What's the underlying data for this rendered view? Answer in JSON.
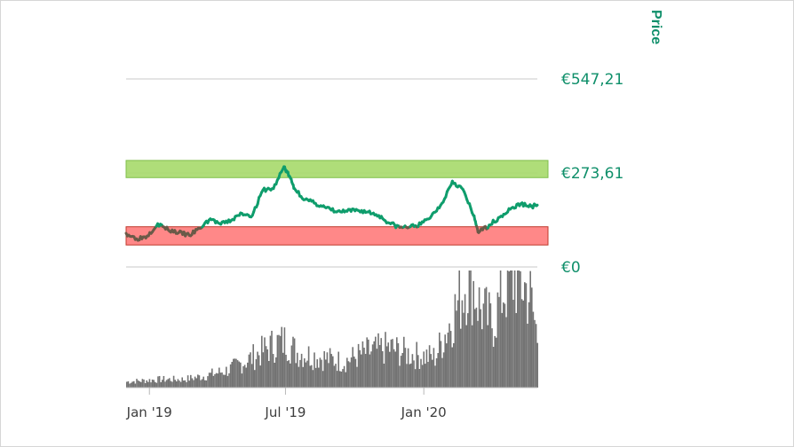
{
  "chart_data": {
    "type": "line",
    "title": "",
    "y_axis_title": "Price",
    "y_tick_labels": [
      "€547,21",
      "€273,61",
      "€0"
    ],
    "y_ticks": [
      547.21,
      273.61,
      0
    ],
    "ylim": [
      0,
      547.21
    ],
    "x_tick_labels": [
      "Jan '19",
      "Jul '19",
      "Jan '20"
    ],
    "x_ticks": [
      "2019-01-01",
      "2019-07-01",
      "2020-01-01"
    ],
    "x_range": [
      "2018-12-01",
      "2020-05-31"
    ],
    "grid": true,
    "zones": [
      {
        "name": "upper-band",
        "color": "#a6d96a",
        "y_from": 260,
        "y_to": 310
      },
      {
        "name": "lower-band",
        "color": "#ff7b7b",
        "y_from": 64,
        "y_to": 117
      }
    ],
    "colors": {
      "line": "#0f9d6c",
      "line_in_band": "#6b5a48",
      "volume": "#737373",
      "accent": "#0f8f6a"
    },
    "series": [
      {
        "values": [
          [
            "2018-12-01",
            98
          ],
          [
            "2018-12-15",
            82
          ],
          [
            "2018-12-29",
            90
          ],
          [
            "2019-01-12",
            126
          ],
          [
            "2019-01-26",
            108
          ],
          [
            "2019-02-09",
            100
          ],
          [
            "2019-02-23",
            92
          ],
          [
            "2019-03-09",
            112
          ],
          [
            "2019-03-23",
            140
          ],
          [
            "2019-04-06",
            124
          ],
          [
            "2019-04-20",
            136
          ],
          [
            "2019-05-04",
            156
          ],
          [
            "2019-05-18",
            150
          ],
          [
            "2019-06-01",
            224
          ],
          [
            "2019-06-15",
            228
          ],
          [
            "2019-06-29",
            292
          ],
          [
            "2019-07-06",
            265
          ],
          [
            "2019-07-13",
            228
          ],
          [
            "2019-07-27",
            196
          ],
          [
            "2019-08-10",
            185
          ],
          [
            "2019-08-24",
            172
          ],
          [
            "2019-09-07",
            160
          ],
          [
            "2019-09-21",
            162
          ],
          [
            "2019-10-05",
            165
          ],
          [
            "2019-10-19",
            160
          ],
          [
            "2019-11-02",
            150
          ],
          [
            "2019-11-16",
            128
          ],
          [
            "2019-11-30",
            115
          ],
          [
            "2019-12-14",
            117
          ],
          [
            "2019-12-28",
            124
          ],
          [
            "2020-01-11",
            148
          ],
          [
            "2020-01-25",
            185
          ],
          [
            "2020-02-08",
            250
          ],
          [
            "2020-02-22",
            226
          ],
          [
            "2020-03-07",
            150
          ],
          [
            "2020-03-14",
            100
          ],
          [
            "2020-03-28",
            122
          ],
          [
            "2020-04-11",
            145
          ],
          [
            "2020-04-25",
            168
          ],
          [
            "2020-05-09",
            184
          ],
          [
            "2020-05-23",
            176
          ],
          [
            "2020-05-31",
            180
          ]
        ]
      }
    ]
  },
  "volume_data": {
    "values": [
      [
        "2018-12-01",
        5
      ],
      [
        "2019-01-15",
        7
      ],
      [
        "2019-02-15",
        7
      ],
      [
        "2019-03-15",
        10
      ],
      [
        "2019-04-15",
        15
      ],
      [
        "2019-05-15",
        25
      ],
      [
        "2019-06-15",
        37
      ],
      [
        "2019-07-01",
        40
      ],
      [
        "2019-07-15",
        30
      ],
      [
        "2019-08-15",
        26
      ],
      [
        "2019-09-15",
        22
      ],
      [
        "2019-10-15",
        30
      ],
      [
        "2019-11-15",
        34
      ],
      [
        "2019-12-15",
        28
      ],
      [
        "2020-01-15",
        26
      ],
      [
        "2020-02-15",
        72
      ],
      [
        "2020-03-01",
        100
      ],
      [
        "2020-03-15",
        68
      ],
      [
        "2020-04-01",
        54
      ],
      [
        "2020-04-15",
        84
      ],
      [
        "2020-05-01",
        96
      ],
      [
        "2020-05-20",
        80
      ],
      [
        "2020-05-31",
        40
      ]
    ]
  }
}
